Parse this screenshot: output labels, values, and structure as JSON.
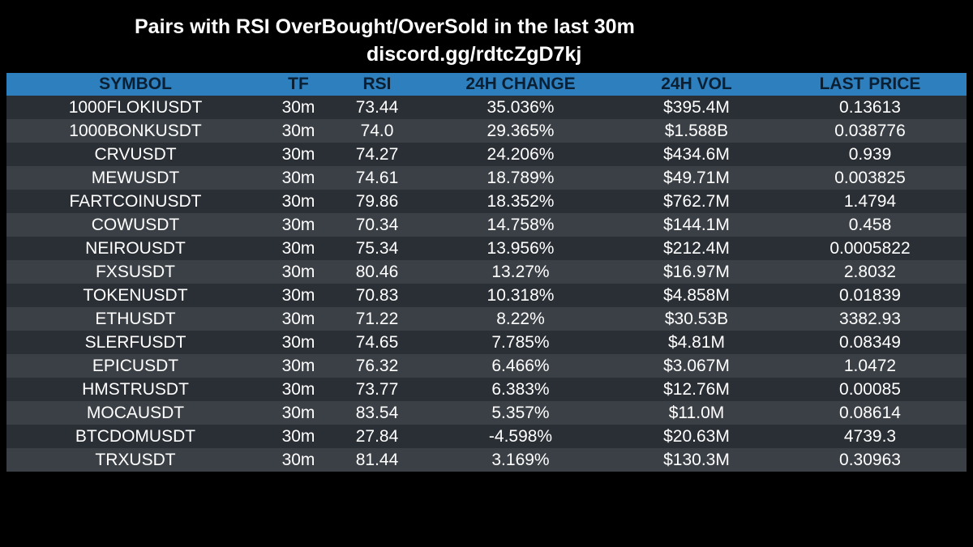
{
  "header": {
    "title": "Pairs with RSI OverBought/OverSold in the last 30m",
    "subtitle": "discord.gg/rdtcZgD7kj"
  },
  "table": {
    "columns": [
      "SYMBOL",
      "TF",
      "RSI",
      "24H CHANGE",
      "24H VOL",
      "LAST PRICE"
    ],
    "rows": [
      [
        "1000FLOKIUSDT",
        "30m",
        "73.44",
        "35.036%",
        "$395.4M",
        "0.13613"
      ],
      [
        "1000BONKUSDT",
        "30m",
        "74.0",
        "29.365%",
        "$1.588B",
        "0.038776"
      ],
      [
        "CRVUSDT",
        "30m",
        "74.27",
        "24.206%",
        "$434.6M",
        "0.939"
      ],
      [
        "MEWUSDT",
        "30m",
        "74.61",
        "18.789%",
        "$49.71M",
        "0.003825"
      ],
      [
        "FARTCOINUSDT",
        "30m",
        "79.86",
        "18.352%",
        "$762.7M",
        "1.4794"
      ],
      [
        "COWUSDT",
        "30m",
        "70.34",
        "14.758%",
        "$144.1M",
        "0.458"
      ],
      [
        "NEIROUSDT",
        "30m",
        "75.34",
        "13.956%",
        "$212.4M",
        "0.0005822"
      ],
      [
        "FXSUSDT",
        "30m",
        "80.46",
        "13.27%",
        "$16.97M",
        "2.8032"
      ],
      [
        "TOKENUSDT",
        "30m",
        "70.83",
        "10.318%",
        "$4.858M",
        "0.01839"
      ],
      [
        "ETHUSDT",
        "30m",
        "71.22",
        "8.22%",
        "$30.53B",
        "3382.93"
      ],
      [
        "SLERFUSDT",
        "30m",
        "74.65",
        "7.785%",
        "$4.81M",
        "0.08349"
      ],
      [
        "EPICUSDT",
        "30m",
        "76.32",
        "6.466%",
        "$3.067M",
        "1.0472"
      ],
      [
        "HMSTRUSDT",
        "30m",
        "73.77",
        "6.383%",
        "$12.76M",
        "0.00085"
      ],
      [
        "MOCAUSDT",
        "30m",
        "83.54",
        "5.357%",
        "$11.0M",
        "0.08614"
      ],
      [
        "BTCDOMUSDT",
        "30m",
        "27.84",
        "-4.598%",
        "$20.63M",
        "4739.3"
      ],
      [
        "TRXUSDT",
        "30m",
        "81.44",
        "3.169%",
        "$130.3M",
        "0.30963"
      ]
    ]
  },
  "colors": {
    "background": "#000000",
    "header_bg": "#2e7fbd",
    "header_text": "#0b1f33",
    "row_dark": "#2a2e35",
    "row_light": "#3b4047",
    "text": "#ffffff"
  }
}
